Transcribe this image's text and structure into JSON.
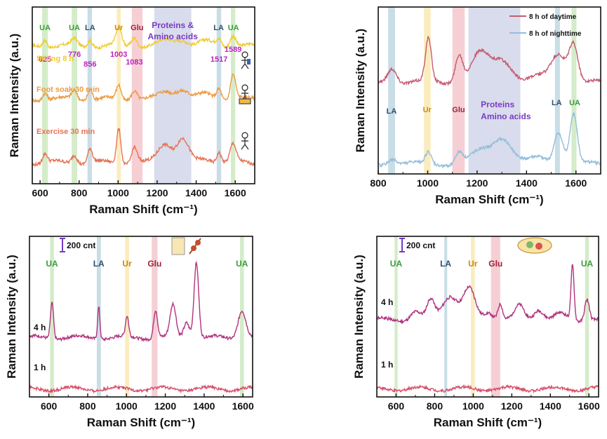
{
  "colors": {
    "UA": "#3a9b3a",
    "LA": "#2d4f6b",
    "Ur": "#c98a10",
    "Glu": "#a01f3a",
    "Proteins": "#7a3ac4",
    "peakpos": "#c020c0",
    "bandUA": "#d4ecc9",
    "bandLA": "#c9dde6",
    "bandUr": "#fbecbd",
    "bandGlu": "#f6cfd4",
    "bandProt": "#d9dcec",
    "sitting": "#f0cc30",
    "foot": "#ee9a40",
    "exercise": "#e67456",
    "day": "#c45c72",
    "night": "#93bedc",
    "magenta": "#b0337d",
    "pink": "#d84f6a"
  },
  "chart_data": [
    {
      "id": "a",
      "type": "line",
      "xlabel": "Raman Shift (cm⁻¹)",
      "ylabel": "Raman Intensity (a.u.)",
      "xlim": [
        560,
        1700
      ],
      "xticks": [
        "600",
        "800",
        "1000",
        "1200",
        "1400",
        "1600"
      ],
      "bands": [
        {
          "type": "UA",
          "from": 610,
          "to": 640
        },
        {
          "type": "UA",
          "from": 762,
          "to": 790
        },
        {
          "type": "LA",
          "from": 843,
          "to": 866
        },
        {
          "type": "Ur",
          "from": 993,
          "to": 1013
        },
        {
          "type": "Glu",
          "from": 1070,
          "to": 1125
        },
        {
          "type": "Prot",
          "from": 1185,
          "to": 1375
        },
        {
          "type": "LA",
          "from": 1505,
          "to": 1528
        },
        {
          "type": "UA",
          "from": 1578,
          "to": 1600
        }
      ],
      "band_labels": [
        {
          "text": "UA",
          "type": "UA",
          "x": 625
        },
        {
          "text": "UA",
          "type": "UA",
          "x": 776
        },
        {
          "text": "LA",
          "type": "LA",
          "x": 856
        },
        {
          "text": "Ur",
          "type": "Ur",
          "x": 1003
        },
        {
          "text": "Glu",
          "type": "Glu",
          "x": 1097
        },
        {
          "text": "LA",
          "type": "LA",
          "x": 1515
        },
        {
          "text": "UA",
          "type": "UA",
          "x": 1591
        }
      ],
      "proteins_label": [
        "Proteins &",
        "Amino acids"
      ],
      "peak_positions": [
        "625",
        "776",
        "856",
        "1003",
        "1083",
        "1517",
        "1589"
      ],
      "peak_values": [
        625,
        776,
        856,
        1003,
        1083,
        1517,
        1589
      ],
      "series": [
        {
          "name": "Sitting 8 h",
          "color": "sitting",
          "offset": 0.78,
          "amp": 0.12,
          "peaks": [
            [
              625,
              0.35,
              12
            ],
            [
              776,
              0.3,
              14
            ],
            [
              856,
              0.35,
              12
            ],
            [
              1003,
              0.8,
              14
            ],
            [
              1083,
              0.45,
              15
            ],
            [
              1250,
              0.25,
              40
            ],
            [
              1330,
              0.3,
              30
            ],
            [
              1450,
              0.2,
              40
            ],
            [
              1517,
              0.35,
              12
            ],
            [
              1589,
              0.55,
              15
            ]
          ]
        },
        {
          "name": "Foot soak 30 min",
          "color": "foot",
          "offset": 0.48,
          "amp": 0.14,
          "peaks": [
            [
              625,
              0.3,
              12
            ],
            [
              776,
              0.35,
              14
            ],
            [
              856,
              0.45,
              12
            ],
            [
              1003,
              0.55,
              12
            ],
            [
              1083,
              0.4,
              15
            ],
            [
              1250,
              0.3,
              40
            ],
            [
              1330,
              0.35,
              30
            ],
            [
              1450,
              0.2,
              40
            ],
            [
              1517,
              0.45,
              12
            ],
            [
              1589,
              1.0,
              13
            ]
          ]
        },
        {
          "name": "Exercise 30 min",
          "color": "exercise",
          "offset": 0.12,
          "amp": 0.2,
          "peaks": [
            [
              625,
              0.25,
              12
            ],
            [
              776,
              0.25,
              14
            ],
            [
              856,
              0.4,
              12
            ],
            [
              1003,
              1.0,
              11
            ],
            [
              1083,
              0.45,
              14
            ],
            [
              1240,
              0.55,
              35
            ],
            [
              1330,
              0.65,
              30
            ],
            [
              1450,
              0.1,
              40
            ],
            [
              1517,
              0.3,
              12
            ],
            [
              1589,
              0.5,
              15
            ]
          ]
        }
      ]
    },
    {
      "id": "b",
      "type": "line",
      "xlabel": "Raman Shift (cm⁻¹)",
      "ylabel": "Raman Intensity (a.u.)",
      "xlim": [
        800,
        1700
      ],
      "xticks": [
        "800",
        "1000",
        "1200",
        "1400",
        "1600"
      ],
      "bands": [
        {
          "type": "LA",
          "from": 840,
          "to": 868
        },
        {
          "type": "Ur",
          "from": 985,
          "to": 1012
        },
        {
          "type": "Glu",
          "from": 1100,
          "to": 1150
        },
        {
          "type": "Prot",
          "from": 1165,
          "to": 1375
        },
        {
          "type": "LA",
          "from": 1515,
          "to": 1535
        },
        {
          "type": "UA",
          "from": 1582,
          "to": 1602
        }
      ],
      "band_labels": [
        {
          "text": "LA",
          "type": "LA",
          "x": 854
        },
        {
          "text": "Ur",
          "type": "Ur",
          "x": 998
        },
        {
          "text": "Glu",
          "type": "Glu",
          "x": 1125
        },
        {
          "text": "LA",
          "type": "LA",
          "x": 1522
        },
        {
          "text": "UA",
          "type": "UA",
          "x": 1595
        }
      ],
      "proteins_label": [
        "Proteins",
        "Amino acids"
      ],
      "legend": [
        "8 h of daytime",
        "8 h of nighttime"
      ],
      "series": [
        {
          "name": "8 h of daytime",
          "color": "day",
          "offset": 0.55,
          "amp": 0.3,
          "peaks": [
            [
              856,
              0.3,
              18
            ],
            [
              1003,
              0.85,
              12
            ],
            [
              1127,
              0.55,
              15
            ],
            [
              1210,
              0.55,
              35
            ],
            [
              1300,
              0.45,
              40
            ],
            [
              1450,
              0.1,
              40
            ],
            [
              1530,
              0.55,
              30
            ],
            [
              1590,
              0.75,
              18
            ]
          ]
        },
        {
          "name": "8 h of nighttime",
          "color": "night",
          "offset": 0.06,
          "amp": 0.35,
          "peaks": [
            [
              856,
              0.1,
              18
            ],
            [
              1003,
              0.2,
              12
            ],
            [
              1127,
              0.2,
              15
            ],
            [
              1210,
              0.2,
              35
            ],
            [
              1300,
              0.45,
              40
            ],
            [
              1450,
              0.1,
              40
            ],
            [
              1530,
              0.55,
              18
            ],
            [
              1590,
              0.85,
              15
            ]
          ]
        }
      ]
    },
    {
      "id": "c",
      "type": "line",
      "xlabel": "Raman Shift (cm⁻¹)",
      "ylabel": "Raman Intensity (a.u.)",
      "xlim": [
        500,
        1650
      ],
      "xticks": [
        "600",
        "800",
        "1000",
        "1200",
        "1400",
        "1600"
      ],
      "scale_label": "200 cnt",
      "bands": [
        {
          "type": "UA",
          "from": 606,
          "to": 626
        },
        {
          "type": "LA",
          "from": 847,
          "to": 868
        },
        {
          "type": "Ur",
          "from": 993,
          "to": 1013
        },
        {
          "type": "Glu",
          "from": 1130,
          "to": 1160
        },
        {
          "type": "UA",
          "from": 1585,
          "to": 1605
        }
      ],
      "band_labels": [
        {
          "text": "UA",
          "type": "UA",
          "x": 616
        },
        {
          "text": "LA",
          "type": "LA",
          "x": 857
        },
        {
          "text": "Ur",
          "type": "Ur",
          "x": 1003
        },
        {
          "text": "Glu",
          "type": "Glu",
          "x": 1145
        },
        {
          "text": "UA",
          "type": "UA",
          "x": 1595
        }
      ],
      "series": [
        {
          "name": "4 h",
          "color": "magenta",
          "offset": 0.37,
          "amp": 0.5,
          "peaks": [
            [
              616,
              0.45,
              8
            ],
            [
              857,
              0.4,
              6
            ],
            [
              1003,
              0.25,
              8
            ],
            [
              1150,
              0.35,
              10
            ],
            [
              1240,
              0.4,
              15
            ],
            [
              1310,
              0.2,
              15
            ],
            [
              1360,
              0.95,
              12
            ],
            [
              1595,
              0.35,
              20
            ]
          ]
        },
        {
          "name": "1 h",
          "color": "pink",
          "offset": 0.05,
          "amp": 0.05,
          "peaks": []
        }
      ]
    },
    {
      "id": "d",
      "type": "line",
      "xlabel": "Raman Shift (cm⁻¹)",
      "ylabel": "Raman Intensity (a.u.)",
      "xlim": [
        500,
        1650
      ],
      "xticks": [
        "600",
        "800",
        "1000",
        "1200",
        "1400",
        "1600"
      ],
      "scale_label": "200 cnt",
      "bands": [
        {
          "type": "UA",
          "from": 592,
          "to": 608
        },
        {
          "type": "LA",
          "from": 850,
          "to": 865
        },
        {
          "type": "Ur",
          "from": 988,
          "to": 1008
        },
        {
          "type": "Glu",
          "from": 1092,
          "to": 1140
        },
        {
          "type": "UA",
          "from": 1580,
          "to": 1600
        }
      ],
      "band_labels": [
        {
          "text": "UA",
          "type": "UA",
          "x": 600
        },
        {
          "text": "LA",
          "type": "LA",
          "x": 857
        },
        {
          "text": "Ur",
          "type": "Ur",
          "x": 998
        },
        {
          "text": "Glu",
          "type": "Glu",
          "x": 1116
        },
        {
          "text": "UA",
          "type": "UA",
          "x": 1590
        }
      ],
      "series": [
        {
          "name": "4 h",
          "color": "magenta",
          "offset": 0.48,
          "amp": 0.34,
          "peaks": [
            [
              700,
              0.15,
              25
            ],
            [
              780,
              0.35,
              20
            ],
            [
              880,
              0.45,
              40
            ],
            [
              980,
              0.55,
              30
            ],
            [
              1080,
              0.15,
              25
            ],
            [
              1140,
              0.3,
              12
            ],
            [
              1240,
              0.25,
              25
            ],
            [
              1340,
              0.2,
              25
            ],
            [
              1450,
              0.1,
              30
            ],
            [
              1515,
              1.0,
              8
            ],
            [
              1590,
              0.4,
              12
            ]
          ]
        },
        {
          "name": "1 h",
          "color": "pink",
          "offset": 0.05,
          "amp": 0.05,
          "peaks": []
        }
      ]
    }
  ]
}
